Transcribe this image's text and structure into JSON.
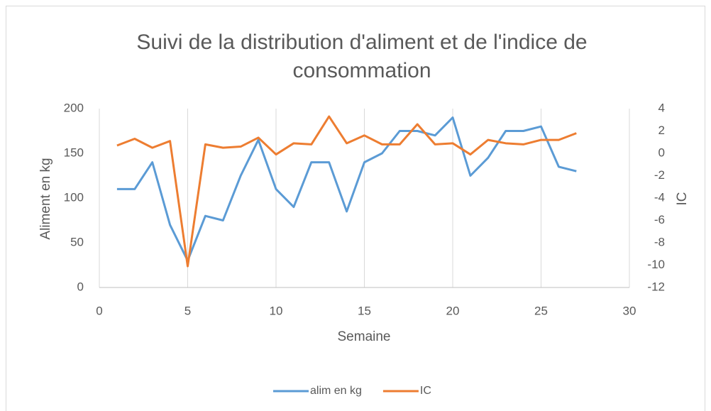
{
  "chart_data": {
    "type": "line",
    "title": "Suivi de la distribution d'aliment et de l'indice de consommation",
    "xlabel": "Semaine",
    "ylabel": "Aliment en kg",
    "y2label": "IC",
    "x": [
      1,
      2,
      3,
      4,
      5,
      6,
      7,
      8,
      9,
      10,
      11,
      12,
      13,
      14,
      15,
      16,
      17,
      18,
      19,
      20,
      21,
      22,
      23,
      24,
      25,
      26,
      27
    ],
    "series": [
      {
        "name": "alim en kg",
        "color": "#5b9bd5",
        "values": [
          110,
          110,
          140,
          70,
          30,
          80,
          75,
          125,
          165,
          110,
          90,
          140,
          140,
          85,
          140,
          150,
          175,
          175,
          170,
          190,
          125,
          145,
          175,
          175,
          180,
          135,
          130
        ]
      },
      {
        "name": "IC",
        "color": "#ed7d31",
        "axis": "y2",
        "values": [
          0.7,
          1.3,
          0.5,
          1.1,
          -10.1,
          0.8,
          0.5,
          0.6,
          1.4,
          -0.1,
          0.9,
          0.8,
          3.3,
          0.9,
          1.6,
          0.8,
          0.8,
          2.6,
          0.8,
          0.9,
          -0.1,
          1.2,
          0.9,
          0.8,
          1.2,
          1.2,
          1.8
        ]
      }
    ],
    "xlim": [
      0,
      30
    ],
    "xticks": [
      0,
      5,
      10,
      15,
      20,
      25,
      30
    ],
    "ylim": [
      0,
      200
    ],
    "yticks": [
      0,
      50,
      100,
      150,
      200
    ],
    "y2lim": [
      -12,
      4
    ],
    "y2ticks": [
      -12,
      -10,
      -8,
      -6,
      -4,
      -2,
      0,
      2,
      4
    ],
    "grid": "x",
    "legend": "bottom"
  }
}
